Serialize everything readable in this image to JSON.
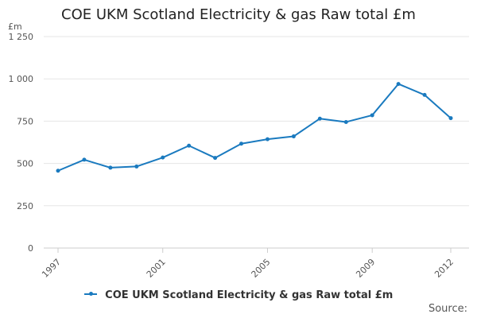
{
  "chart_data": {
    "type": "line",
    "title": "COE UKM Scotland Electricity & gas Raw total £m",
    "ylabel": "£m",
    "xlabel": "",
    "x": [
      1997,
      1998,
      1999,
      2000,
      2001,
      2002,
      2003,
      2004,
      2005,
      2006,
      2007,
      2008,
      2009,
      2010,
      2011,
      2012
    ],
    "x_tick_labels": [
      "1997",
      "2001",
      "2005",
      "2009",
      "2012"
    ],
    "x_tick_values": [
      1997,
      2001,
      2005,
      2009,
      2012
    ],
    "y_tick_labels": [
      "0",
      "250",
      "500",
      "750",
      "1 000",
      "1 250"
    ],
    "y_tick_values": [
      0,
      250,
      500,
      750,
      1000,
      1250
    ],
    "ylim": [
      0,
      1250
    ],
    "xlim": [
      1997,
      2012
    ],
    "grid": true,
    "legend_position": "bottom",
    "series": [
      {
        "name": "COE UKM Scotland Electricity & gas Raw total £m",
        "color": "#1a7abf",
        "values": [
          457,
          522,
          475,
          482,
          535,
          605,
          533,
          617,
          643,
          660,
          765,
          745,
          785,
          970,
          905,
          768
        ]
      }
    ]
  },
  "footer": {
    "source_label": "Source:"
  }
}
